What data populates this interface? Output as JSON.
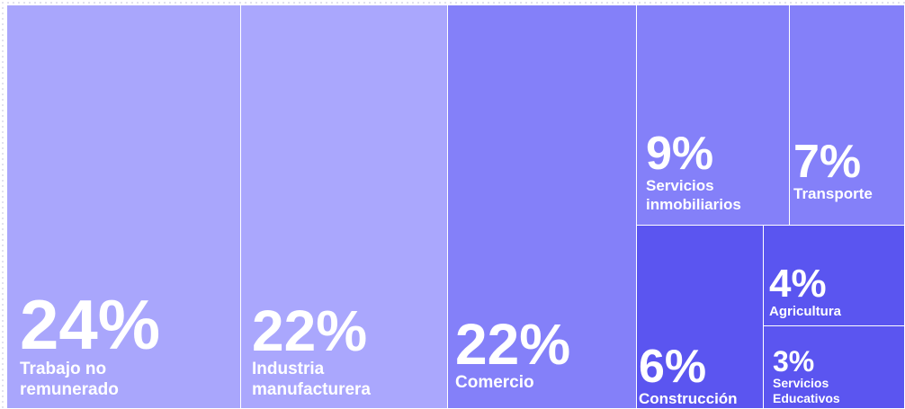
{
  "chart_data": {
    "type": "treemap",
    "categories": [
      "Trabajo no remunerado",
      "Industria manufacturera",
      "Comercio",
      "Servicios inmobiliarios",
      "Transporte",
      "Construcción",
      "Agricultura",
      "Servicios Educativos"
    ],
    "values": [
      24,
      22,
      22,
      9,
      7,
      6,
      4,
      3
    ],
    "value_labels": [
      "24%",
      "22%",
      "22%",
      "9%",
      "7%",
      "6%",
      "4%",
      "3%"
    ],
    "colors": [
      "#a9a6fc",
      "#aaa7fd",
      "#8480f9",
      "#8480f9",
      "#8480f9",
      "#5b55f0",
      "#5a55f0",
      "#5b55f0"
    ]
  }
}
